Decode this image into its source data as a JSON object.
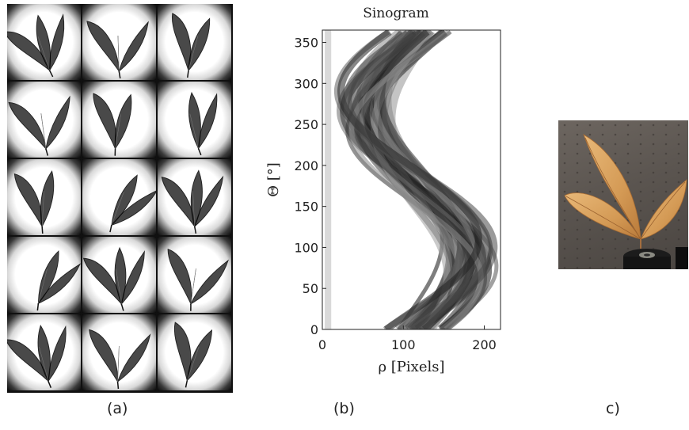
{
  "figure": {
    "panel_a": {
      "label": "(a)"
    },
    "panel_b": {
      "label": "(b)"
    },
    "panel_c": {
      "label": "c)"
    }
  },
  "chart_data": {
    "type": "heatmap",
    "title": "Sinogram",
    "xlabel": "ρ [Pixels]",
    "ylabel": "Θ [°]",
    "xlim": [
      0,
      220
    ],
    "ylim": [
      0,
      365
    ],
    "xticks": [
      0,
      100,
      200
    ],
    "yticks": [
      0,
      50,
      100,
      150,
      200,
      250,
      300,
      350
    ],
    "grid": false,
    "colormap": "grayscale"
  }
}
